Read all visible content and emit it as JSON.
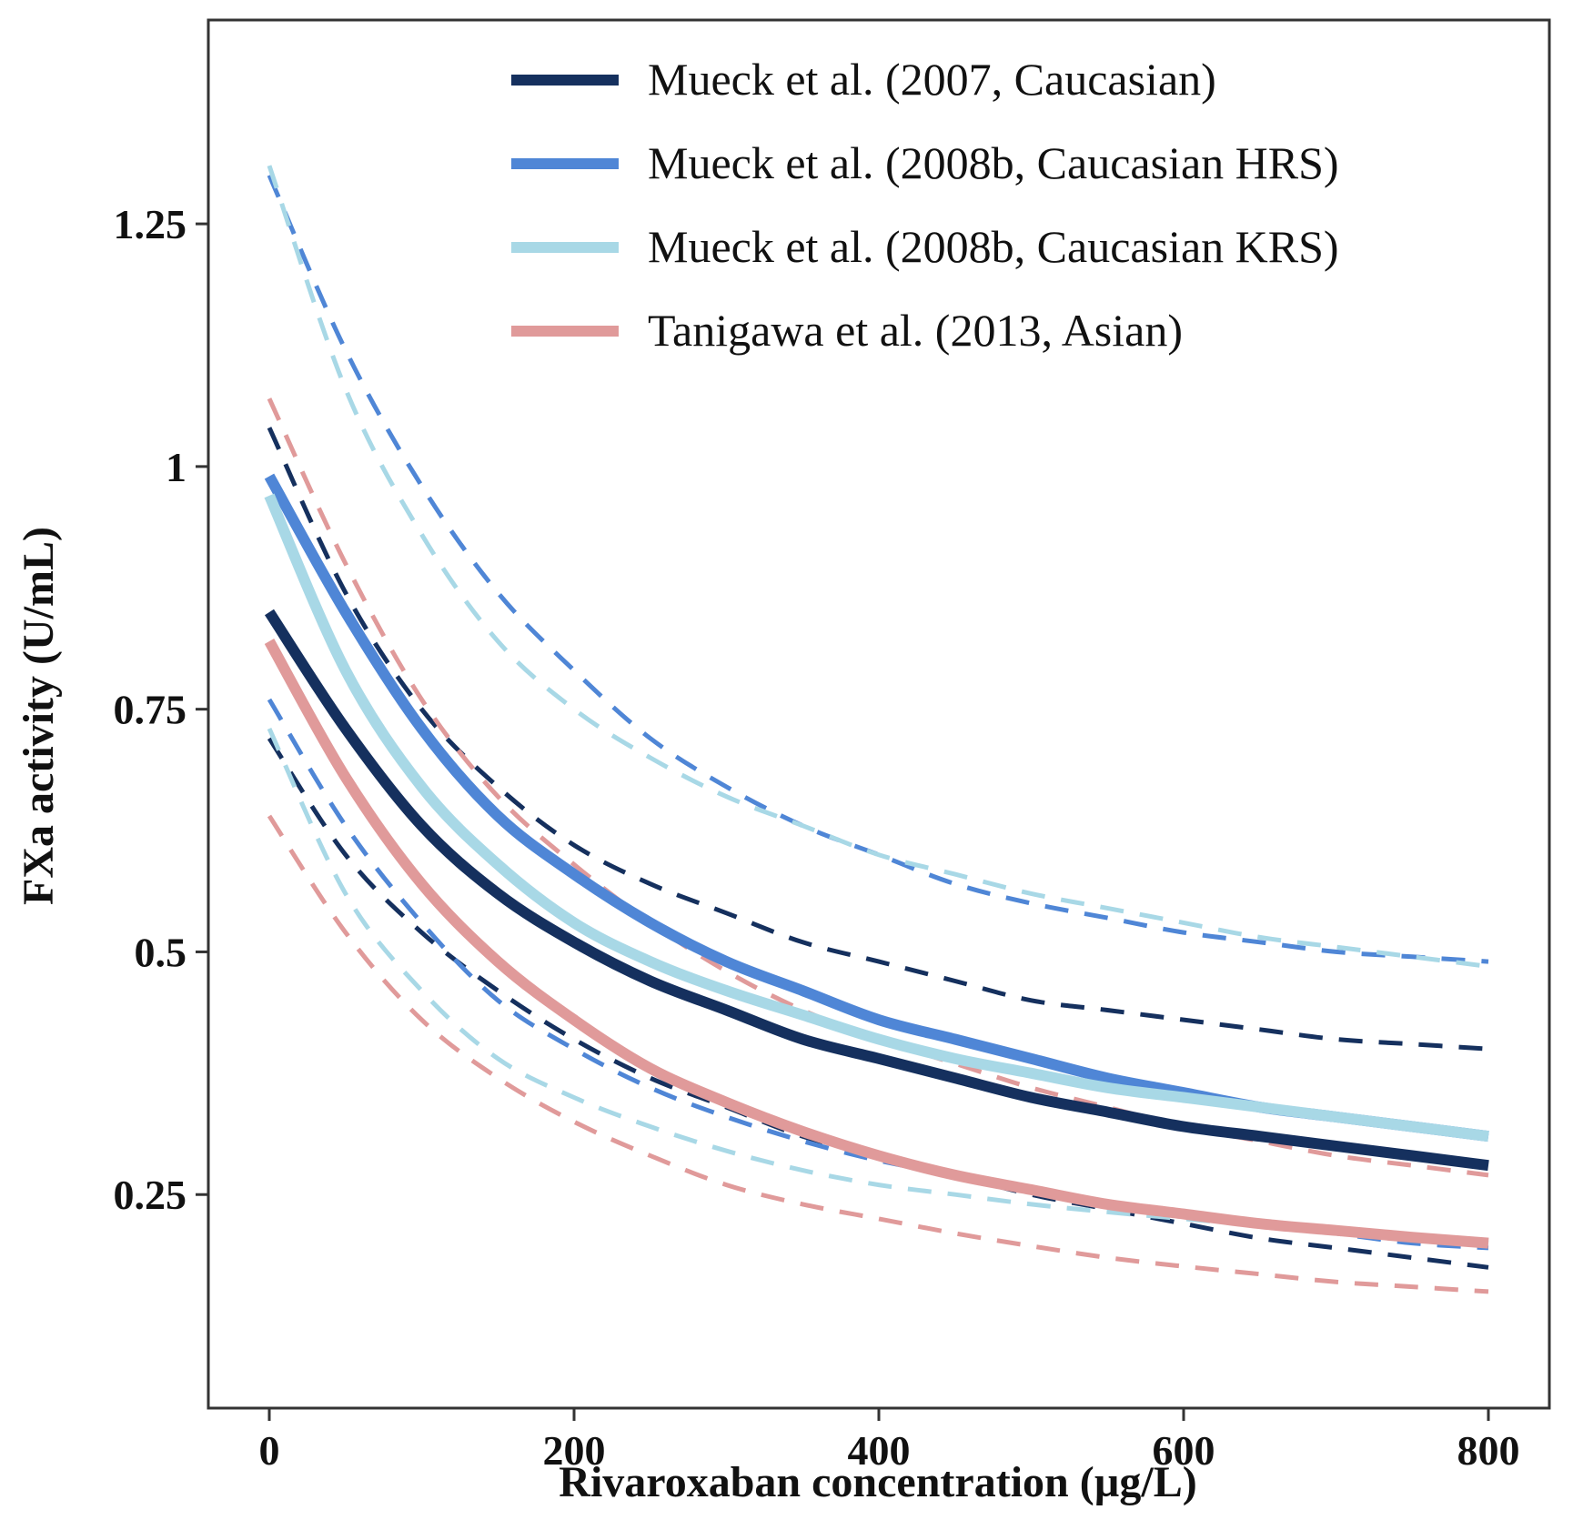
{
  "chart_data": {
    "type": "line",
    "title": "",
    "xlabel": "Rivaroxaban concentration (µg/L)",
    "ylabel": "FXa activity (U/mL)",
    "xlim": [
      -40,
      840
    ],
    "ylim": [
      0.03,
      1.46
    ],
    "xticks": [
      0,
      200,
      400,
      600,
      800
    ],
    "xtick_labels": [
      "0",
      "200",
      "400",
      "600",
      "800"
    ],
    "yticks": [
      0.25,
      0.5,
      0.75,
      1.0,
      1.25
    ],
    "ytick_labels": [
      "0.25",
      "0.5",
      "0.75",
      "1",
      "1.25"
    ],
    "grid": false,
    "legend_position": "top-right",
    "x": [
      0,
      50,
      100,
      150,
      200,
      250,
      300,
      350,
      400,
      450,
      500,
      550,
      600,
      650,
      700,
      750,
      800
    ],
    "series": [
      {
        "name": "Mueck et al. (2007, Caucasian)",
        "color": "#15305e",
        "style": "solid",
        "values": [
          0.85,
          0.73,
          0.63,
          0.56,
          0.51,
          0.47,
          0.44,
          0.41,
          0.39,
          0.37,
          0.35,
          0.335,
          0.32,
          0.31,
          0.3,
          0.29,
          0.28
        ],
        "lower": [
          0.72,
          0.6,
          0.52,
          0.46,
          0.41,
          0.37,
          0.34,
          0.31,
          0.29,
          0.27,
          0.25,
          0.235,
          0.22,
          0.205,
          0.195,
          0.185,
          0.175
        ],
        "upper": [
          1.04,
          0.87,
          0.75,
          0.67,
          0.61,
          0.57,
          0.54,
          0.51,
          0.49,
          0.47,
          0.45,
          0.44,
          0.43,
          0.42,
          0.41,
          0.405,
          0.4
        ]
      },
      {
        "name": "Mueck et al. (2008b, Caucasian HRS)",
        "color": "#4f86d6",
        "style": "solid",
        "values": [
          0.99,
          0.85,
          0.73,
          0.64,
          0.58,
          0.53,
          0.49,
          0.46,
          0.43,
          0.41,
          0.39,
          0.37,
          0.355,
          0.34,
          0.33,
          0.32,
          0.31
        ],
        "lower": [
          0.76,
          0.63,
          0.53,
          0.45,
          0.4,
          0.36,
          0.33,
          0.305,
          0.285,
          0.27,
          0.255,
          0.24,
          0.23,
          0.22,
          0.21,
          0.2,
          0.195
        ],
        "upper": [
          1.3,
          1.12,
          0.98,
          0.87,
          0.79,
          0.72,
          0.67,
          0.63,
          0.6,
          0.57,
          0.55,
          0.535,
          0.52,
          0.51,
          0.5,
          0.495,
          0.49
        ]
      },
      {
        "name": "Mueck et al. (2008b, Caucasian KRS)",
        "color": "#a8d8e6",
        "style": "solid",
        "values": [
          0.97,
          0.79,
          0.67,
          0.59,
          0.53,
          0.49,
          0.46,
          0.435,
          0.41,
          0.39,
          0.375,
          0.36,
          0.35,
          0.34,
          0.33,
          0.32,
          0.31
        ],
        "lower": [
          0.73,
          0.56,
          0.46,
          0.39,
          0.35,
          0.32,
          0.295,
          0.275,
          0.26,
          0.25,
          0.24,
          0.232,
          0.225,
          0.218,
          0.21,
          0.205,
          0.2
        ],
        "upper": [
          1.31,
          1.08,
          0.93,
          0.82,
          0.75,
          0.7,
          0.66,
          0.63,
          0.6,
          0.58,
          0.56,
          0.545,
          0.53,
          0.515,
          0.505,
          0.495,
          0.485
        ]
      },
      {
        "name": "Tanigawa et al. (2013, Asian)",
        "color": "#e09a9a",
        "style": "solid",
        "values": [
          0.82,
          0.68,
          0.57,
          0.49,
          0.43,
          0.38,
          0.345,
          0.315,
          0.29,
          0.27,
          0.255,
          0.24,
          0.23,
          0.22,
          0.213,
          0.206,
          0.2
        ],
        "lower": [
          0.64,
          0.52,
          0.43,
          0.37,
          0.325,
          0.29,
          0.26,
          0.24,
          0.225,
          0.21,
          0.197,
          0.185,
          0.176,
          0.168,
          0.16,
          0.155,
          0.15
        ],
        "upper": [
          1.07,
          0.9,
          0.76,
          0.66,
          0.59,
          0.53,
          0.48,
          0.44,
          0.41,
          0.385,
          0.36,
          0.34,
          0.32,
          0.305,
          0.29,
          0.28,
          0.27
        ]
      }
    ]
  }
}
